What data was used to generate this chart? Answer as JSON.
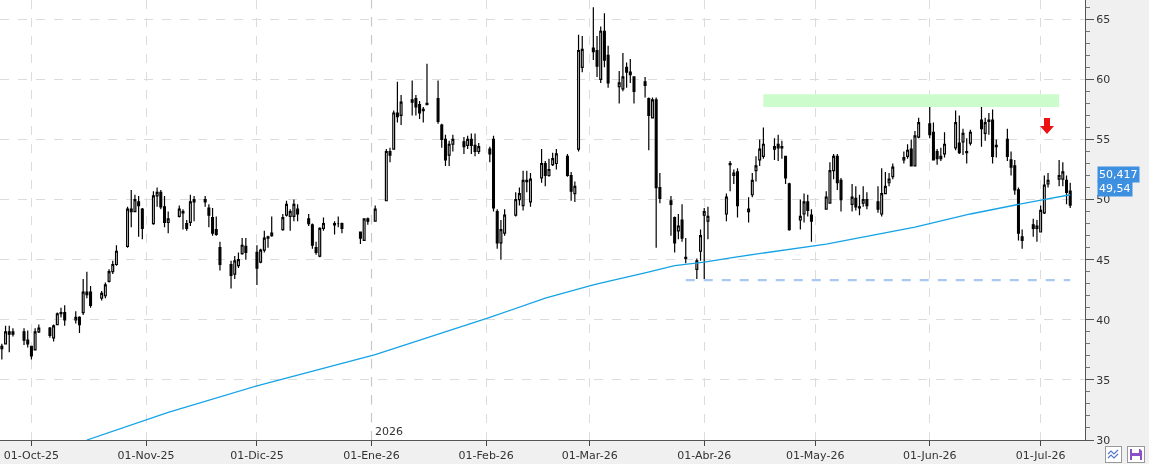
{
  "chart_data": {
    "type": "candlestick",
    "color": "#000000",
    "x": [
      "2025-09-23",
      "2025-09-24",
      "2025-09-25",
      "2025-09-26",
      "2025-09-29",
      "2025-09-30",
      "2025-10-01",
      "2025-10-02",
      "2025-10-03",
      "2025-10-06",
      "2025-10-07",
      "2025-10-08",
      "2025-10-09",
      "2025-10-10",
      "2025-10-13",
      "2025-10-14",
      "2025-10-15",
      "2025-10-16",
      "2025-10-17",
      "2025-10-20",
      "2025-10-21",
      "2025-10-22",
      "2025-10-23",
      "2025-10-24",
      "2025-10-27",
      "2025-10-28",
      "2025-10-29",
      "2025-10-30",
      "2025-10-31",
      "2025-11-03",
      "2025-11-04",
      "2025-11-05",
      "2025-11-06",
      "2025-11-07",
      "2025-11-10",
      "2025-11-11",
      "2025-11-12",
      "2025-11-13",
      "2025-11-14",
      "2025-11-17",
      "2025-11-18",
      "2025-11-19",
      "2025-11-20",
      "2025-11-21",
      "2025-11-24",
      "2025-11-25",
      "2025-11-26",
      "2025-11-27",
      "2025-11-28",
      "2025-12-01",
      "2025-12-02",
      "2025-12-03",
      "2025-12-04",
      "2025-12-05",
      "2025-12-08",
      "2025-12-09",
      "2025-12-10",
      "2025-12-11",
      "2025-12-12",
      "2025-12-15",
      "2025-12-16",
      "2025-12-17",
      "2025-12-18",
      "2025-12-19",
      "2025-12-22",
      "2025-12-23",
      "2025-12-24",
      "2025-12-29",
      "2025-12-30",
      "2025-12-31",
      "2026-01-02",
      "2026-01-05",
      "2026-01-06",
      "2026-01-07",
      "2026-01-08",
      "2026-01-09",
      "2026-01-12",
      "2026-01-13",
      "2026-01-14",
      "2026-01-15",
      "2026-01-16",
      "2026-01-19",
      "2026-01-20",
      "2026-01-21",
      "2026-01-22",
      "2026-01-23",
      "2026-01-26",
      "2026-01-27",
      "2026-01-28",
      "2026-01-29",
      "2026-01-30",
      "2026-02-02",
      "2026-02-03",
      "2026-02-04",
      "2026-02-05",
      "2026-02-06",
      "2026-02-09",
      "2026-02-10",
      "2026-02-11",
      "2026-02-12",
      "2026-02-13",
      "2026-02-16",
      "2026-02-17",
      "2026-02-18",
      "2026-02-19",
      "2026-02-20",
      "2026-02-23",
      "2026-02-24",
      "2026-02-25",
      "2026-02-26",
      "2026-02-27",
      "2026-03-02",
      "2026-03-03",
      "2026-03-04",
      "2026-03-05",
      "2026-03-06",
      "2026-03-09",
      "2026-03-10",
      "2026-03-11",
      "2026-03-12",
      "2026-03-13",
      "2026-03-16",
      "2026-03-17",
      "2026-03-18",
      "2026-03-19",
      "2026-03-20",
      "2026-03-23",
      "2026-03-24",
      "2026-03-25",
      "2026-03-26",
      "2026-03-27",
      "2026-03-30",
      "2026-03-31",
      "2026-04-01",
      "2026-04-02",
      "2026-04-07",
      "2026-04-08",
      "2026-04-09",
      "2026-04-10",
      "2026-04-13",
      "2026-04-14",
      "2026-04-15",
      "2026-04-16",
      "2026-04-17",
      "2026-04-20",
      "2026-04-21",
      "2026-04-22",
      "2026-04-23",
      "2026-04-24",
      "2026-04-27",
      "2026-04-28",
      "2026-04-29",
      "2026-04-30",
      "2026-05-04",
      "2026-05-05",
      "2026-05-06",
      "2026-05-07",
      "2026-05-08",
      "2026-05-11",
      "2026-05-12",
      "2026-05-13",
      "2026-05-14",
      "2026-05-15",
      "2026-05-18",
      "2026-05-19",
      "2026-05-20",
      "2026-05-21",
      "2026-05-22",
      "2026-05-25",
      "2026-05-26",
      "2026-05-27",
      "2026-05-28",
      "2026-05-29",
      "2026-06-01",
      "2026-06-02",
      "2026-06-03",
      "2026-06-04",
      "2026-06-05",
      "2026-06-08",
      "2026-06-09",
      "2026-06-10",
      "2026-06-11",
      "2026-06-12",
      "2026-06-15",
      "2026-06-16",
      "2026-06-17",
      "2026-06-18",
      "2026-06-19",
      "2026-06-22",
      "2026-06-23",
      "2026-06-24",
      "2026-06-25",
      "2026-06-26",
      "2026-06-29",
      "2026-06-30",
      "2026-07-01",
      "2026-07-02",
      "2026-07-03",
      "2026-07-06",
      "2026-07-07",
      "2026-07-08",
      "2026-07-09"
    ],
    "ohlc": [
      [
        37.6,
        38.0,
        36.7,
        37.8
      ],
      [
        38.0,
        39.5,
        38.0,
        39.0
      ],
      [
        39.0,
        39.5,
        37.3,
        38.8
      ],
      [
        38.8,
        39.3,
        38.6,
        39.0
      ],
      [
        39.0,
        39.3,
        37.9,
        38.3
      ],
      [
        38.3,
        39.1,
        37.7,
        38.0
      ],
      [
        37.8,
        37.8,
        36.7,
        37.0
      ],
      [
        37.5,
        39.3,
        37.5,
        39.0
      ],
      [
        39.0,
        39.6,
        38.9,
        39.3
      ],
      [
        39.3,
        39.4,
        38.5,
        38.7
      ],
      [
        38.5,
        39.6,
        38.2,
        39.5
      ],
      [
        39.6,
        40.6,
        39.6,
        40.5
      ],
      [
        40.5,
        41.0,
        40.2,
        40.6
      ],
      [
        40.6,
        41.2,
        39.5,
        40.0
      ],
      [
        40.0,
        40.7,
        39.7,
        40.2
      ],
      [
        40.2,
        40.3,
        38.9,
        39.6
      ],
      [
        40.6,
        43.4,
        40.4,
        42.3
      ],
      [
        42.3,
        44.0,
        41.8,
        42.1
      ],
      [
        42.3,
        42.8,
        41.0,
        41.2
      ],
      [
        41.8,
        42.4,
        41.6,
        42.2
      ],
      [
        42.0,
        43.1,
        41.8,
        42.9
      ],
      [
        43.2,
        44.2,
        43.1,
        44.0
      ],
      [
        44.0,
        44.9,
        43.8,
        44.6
      ],
      [
        44.6,
        46.2,
        44.5,
        45.7
      ],
      [
        46.1,
        49.4,
        46.0,
        49.2
      ],
      [
        49.2,
        50.8,
        47.7,
        49.0
      ],
      [
        49.0,
        50.4,
        49.0,
        50.0
      ],
      [
        49.8,
        50.3,
        46.9,
        49.5
      ],
      [
        49.2,
        49.3,
        46.7,
        47.6
      ],
      [
        48.0,
        50.7,
        47.9,
        50.3
      ],
      [
        50.3,
        51.0,
        49.4,
        50.6
      ],
      [
        50.6,
        50.8,
        49.2,
        49.4
      ],
      [
        49.4,
        50.3,
        47.7,
        48.1
      ],
      [
        48.1,
        49.0,
        47.2,
        48.4
      ],
      [
        48.6,
        49.5,
        48.5,
        49.2
      ],
      [
        49.0,
        49.2,
        47.5,
        48.9
      ],
      [
        48.0,
        48.3,
        47.4,
        47.6
      ],
      [
        48.1,
        50.4,
        47.8,
        49.8
      ],
      [
        49.8,
        50.3,
        48.2,
        50.0
      ],
      [
        50.0,
        50.3,
        49.4,
        49.8
      ],
      [
        49.3,
        49.6,
        47.7,
        48.7
      ],
      [
        48.5,
        49.3,
        47.0,
        47.2
      ],
      [
        47.5,
        48.6,
        47.0,
        47.1
      ],
      [
        46.0,
        46.5,
        44.1,
        44.6
      ],
      [
        44.6,
        44.9,
        42.6,
        43.7
      ],
      [
        43.8,
        45.3,
        43.4,
        44.9
      ],
      [
        44.5,
        45.6,
        44.3,
        45.0
      ],
      [
        45.5,
        46.8,
        45.4,
        46.2
      ],
      [
        46.1,
        46.8,
        45.0,
        45.6
      ],
      [
        45.6,
        46.2,
        42.9,
        44.3
      ],
      [
        44.8,
        45.9,
        44.7,
        45.8
      ],
      [
        45.8,
        47.4,
        45.6,
        46.8
      ],
      [
        46.8,
        47.0,
        46.0,
        46.9
      ],
      [
        47.0,
        48.6,
        46.9,
        47.2
      ],
      [
        47.5,
        48.8,
        47.4,
        48.5
      ],
      [
        48.7,
        49.9,
        48.6,
        49.6
      ],
      [
        48.6,
        49.2,
        47.4,
        49.0
      ],
      [
        48.6,
        50.0,
        48.2,
        49.6
      ],
      [
        49.2,
        49.6,
        48.2,
        48.8
      ],
      [
        48.4,
        48.8,
        47.8,
        48.0
      ],
      [
        47.9,
        48.0,
        45.9,
        46.2
      ],
      [
        46.0,
        46.5,
        45.4,
        45.6
      ],
      [
        45.3,
        47.7,
        45.2,
        47.6
      ],
      [
        47.6,
        48.5,
        47.4,
        48.0
      ],
      [
        48.0,
        48.2,
        47.1,
        47.9
      ],
      [
        48.0,
        48.6,
        47.7,
        48.0
      ],
      [
        48.0,
        48.1,
        47.2,
        47.6
      ],
      [
        47.3,
        47.3,
        46.3,
        46.8
      ],
      [
        46.6,
        48.4,
        46.6,
        48.4
      ],
      [
        48.4,
        48.5,
        47.9,
        48.2
      ],
      [
        48.2,
        49.5,
        48.2,
        49.2
      ],
      [
        49.9,
        54.2,
        49.9,
        54.0
      ],
      [
        54.0,
        54.3,
        53.1,
        53.7
      ],
      [
        54.2,
        57.4,
        54.2,
        57.2
      ],
      [
        57.2,
        59.8,
        56.4,
        56.9
      ],
      [
        57.0,
        58.7,
        56.2,
        58.1
      ],
      [
        58.1,
        59.9,
        57.0,
        58.3
      ],
      [
        58.4,
        58.7,
        57.0,
        57.7
      ],
      [
        57.9,
        58.2,
        56.7,
        57.2
      ],
      [
        57.4,
        57.7,
        56.4,
        57.5
      ],
      [
        57.9,
        61.3,
        57.9,
        58.0
      ],
      [
        58.4,
        59.9,
        56.3,
        56.5
      ],
      [
        56.2,
        56.3,
        54.3,
        55.0
      ],
      [
        55.0,
        55.4,
        52.8,
        53.3
      ],
      [
        53.7,
        54.9,
        52.8,
        54.6
      ],
      [
        54.6,
        55.4,
        54.0,
        55.0
      ],
      [
        54.8,
        55.2,
        53.8,
        54.4
      ],
      [
        54.5,
        55.3,
        54.2,
        55.0
      ],
      [
        55.0,
        55.5,
        53.8,
        54.5
      ],
      [
        54.5,
        55.5,
        53.6,
        54.0
      ],
      [
        54.0,
        54.7,
        53.8,
        54.4
      ],
      [
        54.2,
        54.4,
        53.1,
        53.8
      ],
      [
        55.0,
        55.3,
        49.0,
        49.3
      ],
      [
        49.0,
        49.2,
        45.9,
        46.4
      ],
      [
        46.4,
        48.3,
        45.0,
        47.5
      ],
      [
        47.2,
        49.2,
        47.0,
        48.7
      ],
      [
        48.7,
        50.6,
        48.6,
        50.0
      ],
      [
        50.0,
        51.0,
        49.5,
        50.5
      ],
      [
        49.5,
        52.4,
        49.1,
        51.6
      ],
      [
        51.6,
        52.4,
        50.6,
        51.5
      ],
      [
        49.8,
        52.2,
        49.4,
        51.7
      ],
      [
        51.8,
        54.2,
        51.4,
        53.0
      ],
      [
        53.0,
        53.2,
        51.1,
        52.0
      ],
      [
        52.0,
        53.4,
        51.9,
        52.5
      ],
      [
        52.9,
        53.9,
        52.8,
        53.4
      ],
      [
        53.0,
        54.2,
        52.5,
        53.8
      ],
      [
        53.6,
        53.8,
        51.9,
        52.0
      ],
      [
        52.0,
        52.3,
        49.9,
        50.7
      ],
      [
        50.5,
        51.5,
        49.8,
        51.1
      ],
      [
        54.2,
        63.7,
        54.0,
        62.4
      ],
      [
        61.0,
        63.6,
        60.6,
        62.5
      ],
      [
        62.6,
        66.0,
        61.6,
        62.3
      ],
      [
        62.4,
        63.6,
        60.2,
        61.1
      ],
      [
        60.0,
        64.4,
        59.7,
        64.0
      ],
      [
        64.0,
        65.5,
        61.0,
        61.6
      ],
      [
        62.0,
        62.8,
        59.3,
        59.7
      ],
      [
        59.4,
        60.7,
        58.0,
        59.7
      ],
      [
        59.2,
        62.2,
        59.0,
        60.2
      ],
      [
        61.0,
        61.4,
        59.3,
        60.6
      ],
      [
        60.6,
        61.7,
        59.7,
        60.4
      ],
      [
        60.2,
        60.2,
        58.0,
        59.0
      ],
      [
        59.8,
        60.2,
        58.5,
        59.5
      ],
      [
        58.4,
        58.5,
        54.1,
        57.0
      ],
      [
        56.8,
        58.5,
        56.8,
        58.3
      ],
      [
        58.3,
        58.5,
        46.0,
        51.0
      ],
      [
        51.0,
        52.2,
        49.7,
        50.1
      ],
      [
        49.9,
        50.3,
        47.0,
        49.6
      ],
      [
        48.5,
        48.6,
        45.6,
        46.4
      ],
      [
        47.4,
        48.8,
        46.7,
        47.8
      ],
      [
        48.3,
        49.6,
        46.5,
        46.8
      ],
      [
        45.1,
        46.8,
        44.7,
        45.2
      ],
      [
        44.2,
        45.1,
        43.4,
        44.9
      ],
      [
        45.7,
        47.5,
        44.9,
        47.0
      ],
      [
        48.7,
        49.3,
        43.4,
        49.0
      ],
      [
        48.2,
        49.4,
        46.7,
        48.6
      ],
      [
        48.8,
        50.5,
        48.2,
        50.2
      ],
      [
        53.0,
        53.2,
        50.7,
        52.9
      ],
      [
        52.0,
        52.5,
        51.3,
        52.2
      ],
      [
        52.3,
        52.6,
        48.5,
        49.5
      ],
      [
        49.0,
        50.2,
        48.1,
        49.2
      ],
      [
        50.4,
        52.2,
        50.2,
        51.6
      ],
      [
        52.4,
        53.6,
        51.5,
        52.8
      ],
      [
        53.3,
        55.0,
        52.8,
        54.2
      ],
      [
        53.6,
        56.0,
        53.4,
        54.6
      ],
      [
        54.2,
        55.1,
        53.3,
        54.4
      ],
      [
        54.6,
        55.4,
        53.2,
        54.3
      ],
      [
        54.4,
        54.9,
        53.4,
        54.3
      ],
      [
        53.6,
        53.6,
        51.3,
        51.8
      ],
      [
        51.3,
        51.4,
        47.4,
        47.5
      ],
      [
        48.3,
        50.0,
        47.5,
        48.6
      ],
      [
        48.8,
        50.5,
        48.1,
        49.8
      ],
      [
        49.8,
        50.4,
        48.6,
        49.1
      ],
      [
        48.7,
        49.2,
        46.5,
        48.2
      ],
      [
        49.2,
        50.7,
        49.2,
        50.2
      ],
      [
        49.7,
        53.1,
        49.7,
        52.4
      ],
      [
        52.4,
        53.8,
        51.7,
        53.6
      ],
      [
        53.6,
        53.8,
        50.8,
        51.4
      ],
      [
        51.6,
        51.8,
        49.0,
        50.0
      ],
      [
        49.6,
        51.3,
        49.0,
        50.2
      ],
      [
        50.1,
        51.1,
        49.1,
        49.4
      ],
      [
        49.4,
        50.4,
        48.7,
        49.3
      ],
      [
        49.7,
        51.1,
        49.4,
        50.0
      ],
      [
        50.0,
        50.6,
        49.2,
        49.5
      ],
      [
        49.8,
        51.1,
        48.9,
        49.2
      ],
      [
        48.8,
        52.6,
        48.6,
        50.5
      ],
      [
        50.5,
        52.3,
        50.5,
        51.1
      ],
      [
        51.4,
        52.2,
        51.1,
        51.7
      ],
      [
        51.9,
        53.0,
        51.7,
        52.7
      ],
      [
        53.3,
        54.0,
        53.0,
        53.5
      ],
      [
        53.6,
        54.6,
        53.4,
        54.1
      ],
      [
        54.2,
        55.0,
        52.8,
        52.8
      ],
      [
        52.8,
        55.7,
        52.8,
        55.3
      ],
      [
        55.2,
        56.8,
        55.1,
        56.4
      ],
      [
        56.3,
        57.7,
        55.1,
        55.4
      ],
      [
        55.6,
        56.4,
        53.3,
        53.3
      ],
      [
        54.0,
        54.2,
        52.9,
        53.4
      ],
      [
        53.4,
        54.3,
        53.2,
        53.6
      ],
      [
        53.8,
        55.6,
        53.5,
        54.6
      ],
      [
        54.3,
        57.4,
        54.1,
        56.4
      ],
      [
        54.7,
        57.0,
        53.8,
        53.9
      ],
      [
        54.8,
        55.9,
        53.7,
        55.5
      ],
      [
        54.0,
        55.1,
        53.0,
        53.9
      ],
      [
        54.7,
        55.8,
        54.5,
        55.6
      ],
      [
        56.6,
        57.8,
        54.4,
        55.9
      ],
      [
        55.5,
        56.8,
        54.9,
        56.4
      ],
      [
        56.5,
        57.2,
        55.4,
        56.6
      ],
      [
        56.6,
        57.5,
        53.0,
        53.6
      ],
      [
        54.5,
        55.0,
        53.5,
        54.4
      ],
      [
        55.0,
        55.9,
        53.2,
        53.6
      ],
      [
        53.3,
        54.0,
        52.0,
        52.7
      ],
      [
        52.8,
        53.3,
        50.4,
        50.8
      ],
      [
        50.8,
        51.0,
        46.6,
        47.2
      ],
      [
        46.9,
        47.5,
        45.9,
        46.6
      ],
      [
        47.9,
        48.4,
        46.9,
        47.6
      ],
      [
        47.6,
        48.3,
        46.5,
        47.8
      ],
      [
        47.3,
        49.5,
        47.3,
        49.1
      ],
      [
        48.9,
        52.0,
        48.8,
        51.2
      ],
      [
        51.3,
        52.2,
        51.0,
        51.6
      ],
      [
        51.7,
        53.3,
        51.1,
        52.0
      ],
      [
        51.7,
        53.1,
        51.1,
        52.3
      ],
      [
        51.6,
        52.0,
        49.6,
        50.6
      ],
      [
        50.7,
        51.4,
        49.3,
        49.54
      ]
    ],
    "series": [
      {
        "type": "line",
        "color": "#15a3e6",
        "x": [
          "2025-10-16",
          "2025-11-07",
          "2025-12-01",
          "2026-01-02",
          "2026-02-02",
          "2026-02-17",
          "2026-03-02",
          "2026-03-06",
          "2026-03-16",
          "2026-03-24",
          "2026-04-01",
          "2026-04-09",
          "2026-05-04",
          "2026-05-28",
          "2026-06-12",
          "2026-06-30",
          "2026-07-09"
        ],
        "values": [
          30.0,
          32.3,
          34.5,
          37.1,
          40.2,
          41.8,
          42.9,
          43.2,
          43.9,
          44.5,
          44.8,
          45.2,
          46.3,
          47.7,
          48.8,
          49.9,
          50.4
        ]
      },
      {
        "type": "line",
        "color": "#a9c9f2",
        "line_style": "dashed",
        "x": [
          "2026-03-27",
          "2026-07-09"
        ],
        "values": [
          43.3,
          43.3
        ]
      },
      {
        "type": "line",
        "color": "#ccfccc",
        "x": [
          "2026-04-17",
          "2026-07-06"
        ],
        "values": [
          58.7,
          58.7
        ],
        "lower": [
          57.7,
          57.7
        ],
        "upper": [
          58.7,
          58.7
        ]
      }
    ],
    "xlim": [
      "2025-09-22T12:00",
      "2026-07-13"
    ],
    "xticks": [
      {
        "value": "2025-10-01",
        "label": "01-Oct-25"
      },
      {
        "value": "2025-11-01",
        "label": "01-Nov-25"
      },
      {
        "value": "2025-12-01",
        "label": "01-Dic-25"
      },
      {
        "value": "2026-01-01",
        "label": "01-Ene-26"
      },
      {
        "value": "2026-02-01",
        "label": "01-Feb-26"
      },
      {
        "value": "2026-03-01",
        "label": "01-Mar-26"
      },
      {
        "value": "2026-04-01",
        "label": "01-Abr-26"
      },
      {
        "value": "2026-05-01",
        "label": "01-May-26"
      },
      {
        "value": "2026-06-01",
        "label": "01-Jun-26"
      },
      {
        "value": "2026-07-01",
        "label": "01-Jul-26"
      }
    ],
    "ylim": [
      30,
      66.6
    ],
    "yticks": [
      30,
      35,
      40,
      45,
      50,
      55,
      60,
      65
    ],
    "grid": true,
    "ref_lines": [
      {
        "axis": "x",
        "value": "2026-01-01",
        "label": "2026",
        "color": "#c8c8c8",
        "line_style": "dashed"
      }
    ],
    "annotations": [
      "50,417",
      "49,54"
    ]
  }
}
